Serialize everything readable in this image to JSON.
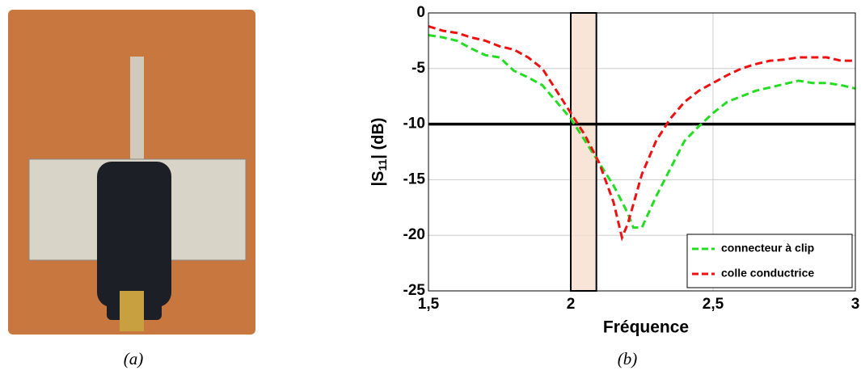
{
  "captions": [
    "(a)",
    "(b)"
  ],
  "chart_data": {
    "type": "line",
    "xlabel": "Fréquence",
    "ylabel": [
      "|S",
      "11",
      "| (dB)"
    ],
    "xlim": [
      1.5,
      3
    ],
    "ylim": [
      -25,
      0
    ],
    "xticks": [
      {
        "value": 1.5,
        "label": "1,5"
      },
      2,
      {
        "value": 2.5,
        "label": "2,5"
      },
      3
    ],
    "yticks": [
      0,
      -5,
      -10,
      -15,
      -20,
      -25
    ],
    "grid": true,
    "threshold": -10,
    "band": [
      2.0,
      2.09
    ],
    "legend": "lower right",
    "series": [
      {
        "name": "connecteur à clip",
        "color": "#22dd22",
        "x": [
          1.5,
          1.55,
          1.6,
          1.65,
          1.7,
          1.75,
          1.8,
          1.85,
          1.9,
          1.95,
          2.0,
          2.05,
          2.1,
          2.15,
          2.2,
          2.22,
          2.25,
          2.3,
          2.35,
          2.4,
          2.45,
          2.5,
          2.55,
          2.6,
          2.65,
          2.7,
          2.75,
          2.8,
          2.85,
          2.9,
          2.95,
          3.0
        ],
        "values": [
          -2,
          -2.2,
          -2.5,
          -3.2,
          -3.8,
          -4,
          -5.2,
          -5.8,
          -6.5,
          -8,
          -9.5,
          -11.5,
          -13.5,
          -15.5,
          -18,
          -19.3,
          -19.3,
          -16.5,
          -14,
          -11.5,
          -10.2,
          -9,
          -8,
          -7.5,
          -7,
          -6.7,
          -6.4,
          -6.1,
          -6.3,
          -6.3,
          -6.5,
          -6.8
        ]
      },
      {
        "name": "colle conductrice",
        "color": "#ee1111",
        "x": [
          1.5,
          1.55,
          1.6,
          1.65,
          1.7,
          1.75,
          1.8,
          1.85,
          1.9,
          1.95,
          2.0,
          2.05,
          2.1,
          2.15,
          2.18,
          2.2,
          2.25,
          2.3,
          2.35,
          2.4,
          2.45,
          2.5,
          2.55,
          2.6,
          2.65,
          2.7,
          2.75,
          2.8,
          2.85,
          2.9,
          2.95,
          3.0
        ],
        "values": [
          -1.2,
          -1.6,
          -1.8,
          -2.2,
          -2.5,
          -3,
          -3.3,
          -4,
          -5,
          -7,
          -9,
          -11,
          -13.5,
          -17,
          -20.2,
          -19,
          -14.5,
          -11.5,
          -9.5,
          -8,
          -7,
          -6.3,
          -5.6,
          -5,
          -4.6,
          -4.3,
          -4.2,
          -4,
          -4,
          -4,
          -4.3,
          -4.3
        ]
      }
    ]
  }
}
